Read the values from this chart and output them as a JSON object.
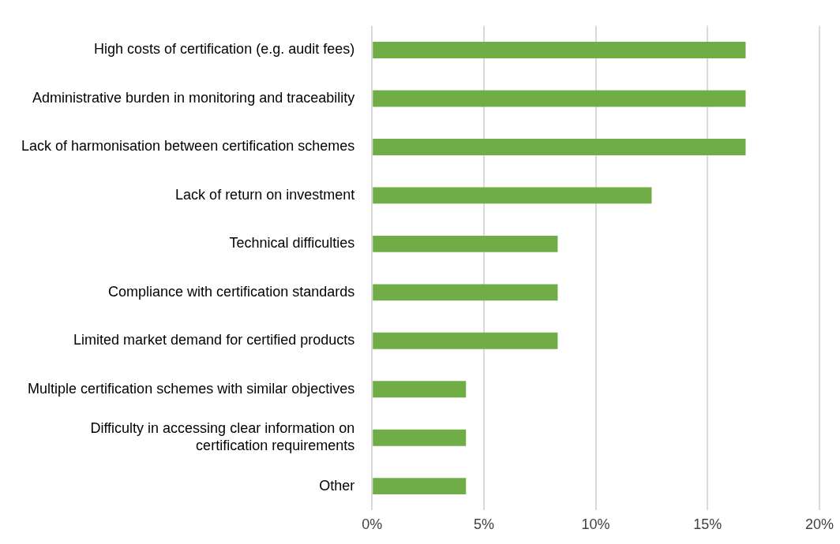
{
  "chart_data": {
    "type": "bar",
    "orientation": "horizontal",
    "categories": [
      "High costs of certification (e.g. audit fees)",
      "Administrative burden in monitoring and traceability",
      "Lack of harmonisation between certification schemes",
      "Lack of return on investment",
      "Technical difficulties",
      "Compliance with certification standards",
      "Limited market demand for certified products",
      "Multiple certification schemes with similar objectives",
      "Difficulty in accessing clear information on certification requirements",
      "Other"
    ],
    "values": [
      16.7,
      16.7,
      16.7,
      12.5,
      8.3,
      8.3,
      8.3,
      4.2,
      4.2,
      4.2
    ],
    "color": "#70ad47",
    "xlim": [
      0,
      20
    ],
    "xticks": [
      {
        "value": 0,
        "label": "0%"
      },
      {
        "value": 5,
        "label": "5%"
      },
      {
        "value": 10,
        "label": "10%"
      },
      {
        "value": 15,
        "label": "15%"
      },
      {
        "value": 20,
        "label": "20%"
      }
    ],
    "grid": "x",
    "legend": false
  }
}
